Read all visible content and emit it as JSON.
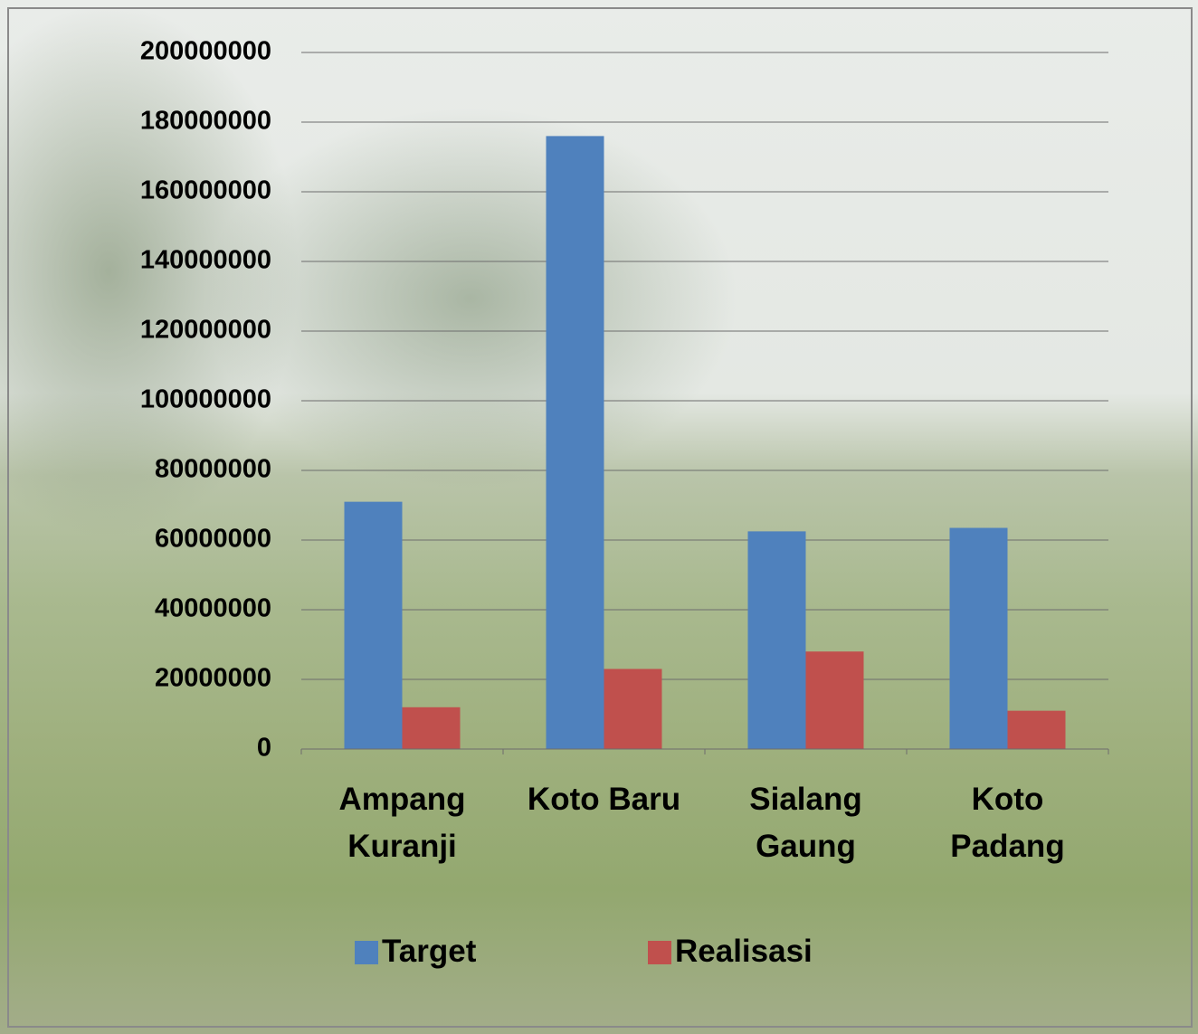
{
  "chart_data": {
    "type": "bar",
    "categories": [
      "Ampang Kuranji",
      "Koto Baru",
      "Sialang Gaung",
      "Koto Padang"
    ],
    "series": [
      {
        "name": "Target",
        "color": "#4f81bd",
        "values": [
          71000000,
          176000000,
          62500000,
          63500000
        ]
      },
      {
        "name": "Realisasi",
        "color": "#c0504d",
        "values": [
          12000000,
          23000000,
          28000000,
          11000000
        ]
      }
    ],
    "ylim": [
      0,
      200000000
    ],
    "yticks": [
      0,
      20000000,
      40000000,
      60000000,
      80000000,
      100000000,
      120000000,
      140000000,
      160000000,
      180000000,
      200000000
    ],
    "grid": true,
    "legend": "bottom"
  }
}
